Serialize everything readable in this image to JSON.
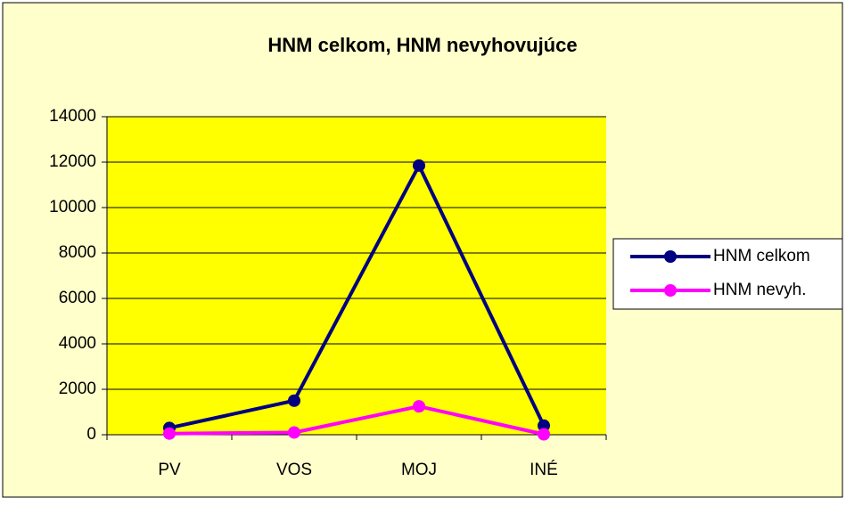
{
  "chart_data": {
    "type": "line",
    "title": "HNM celkom, HNM nevyhovujúce",
    "categories": [
      "PV",
      "VOS",
      "MOJ",
      "INÉ"
    ],
    "series": [
      {
        "name": "HNM celkom",
        "color": "#000080",
        "values": [
          300,
          1500,
          11850,
          400
        ]
      },
      {
        "name": "HNM nevyh.",
        "color": "#ff00ff",
        "values": [
          50,
          100,
          1250,
          20
        ]
      }
    ],
    "ylim": [
      0,
      14000
    ],
    "yticks": [
      0,
      2000,
      4000,
      6000,
      8000,
      10000,
      12000,
      14000
    ],
    "grid": true,
    "legend": "right"
  }
}
